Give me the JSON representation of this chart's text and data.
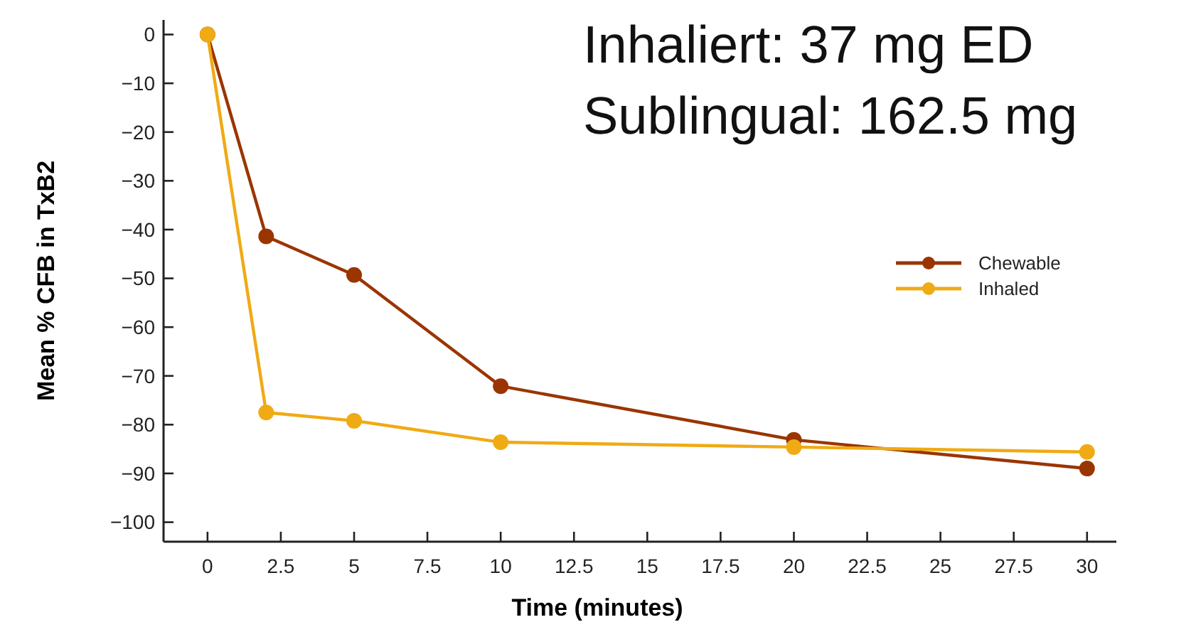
{
  "chart_data": {
    "type": "line",
    "xlabel": "Time (minutes)",
    "ylabel": "Mean % CFB in TxB2",
    "annotations": [
      "Inhaliert: 37 mg ED",
      "Sublingual: 162.5 mg"
    ],
    "x": [
      0,
      2,
      5,
      10,
      20,
      30
    ],
    "series": [
      {
        "name": "Chewable",
        "color": "#9a3500",
        "values": [
          0,
          -41.4,
          -49.3,
          -72.1,
          -83.1,
          -89
        ]
      },
      {
        "name": "Inhaled",
        "color": "#f0aa14",
        "values": [
          0,
          -77.5,
          -79.2,
          -83.6,
          -84.6,
          -85.6
        ]
      }
    ],
    "xlim": [
      -1.5,
      31
    ],
    "xticks": [
      0,
      2.5,
      5,
      7.5,
      10,
      12.5,
      15,
      17.5,
      20,
      22.5,
      25,
      27.5,
      30
    ],
    "ylim": [
      -104,
      3
    ],
    "yticks": [
      0,
      -10,
      -20,
      -30,
      -40,
      -50,
      -60,
      -70,
      -80,
      -90,
      -100
    ],
    "grid": false,
    "legend": "right",
    "marker": "circle",
    "line_style": "solid"
  }
}
